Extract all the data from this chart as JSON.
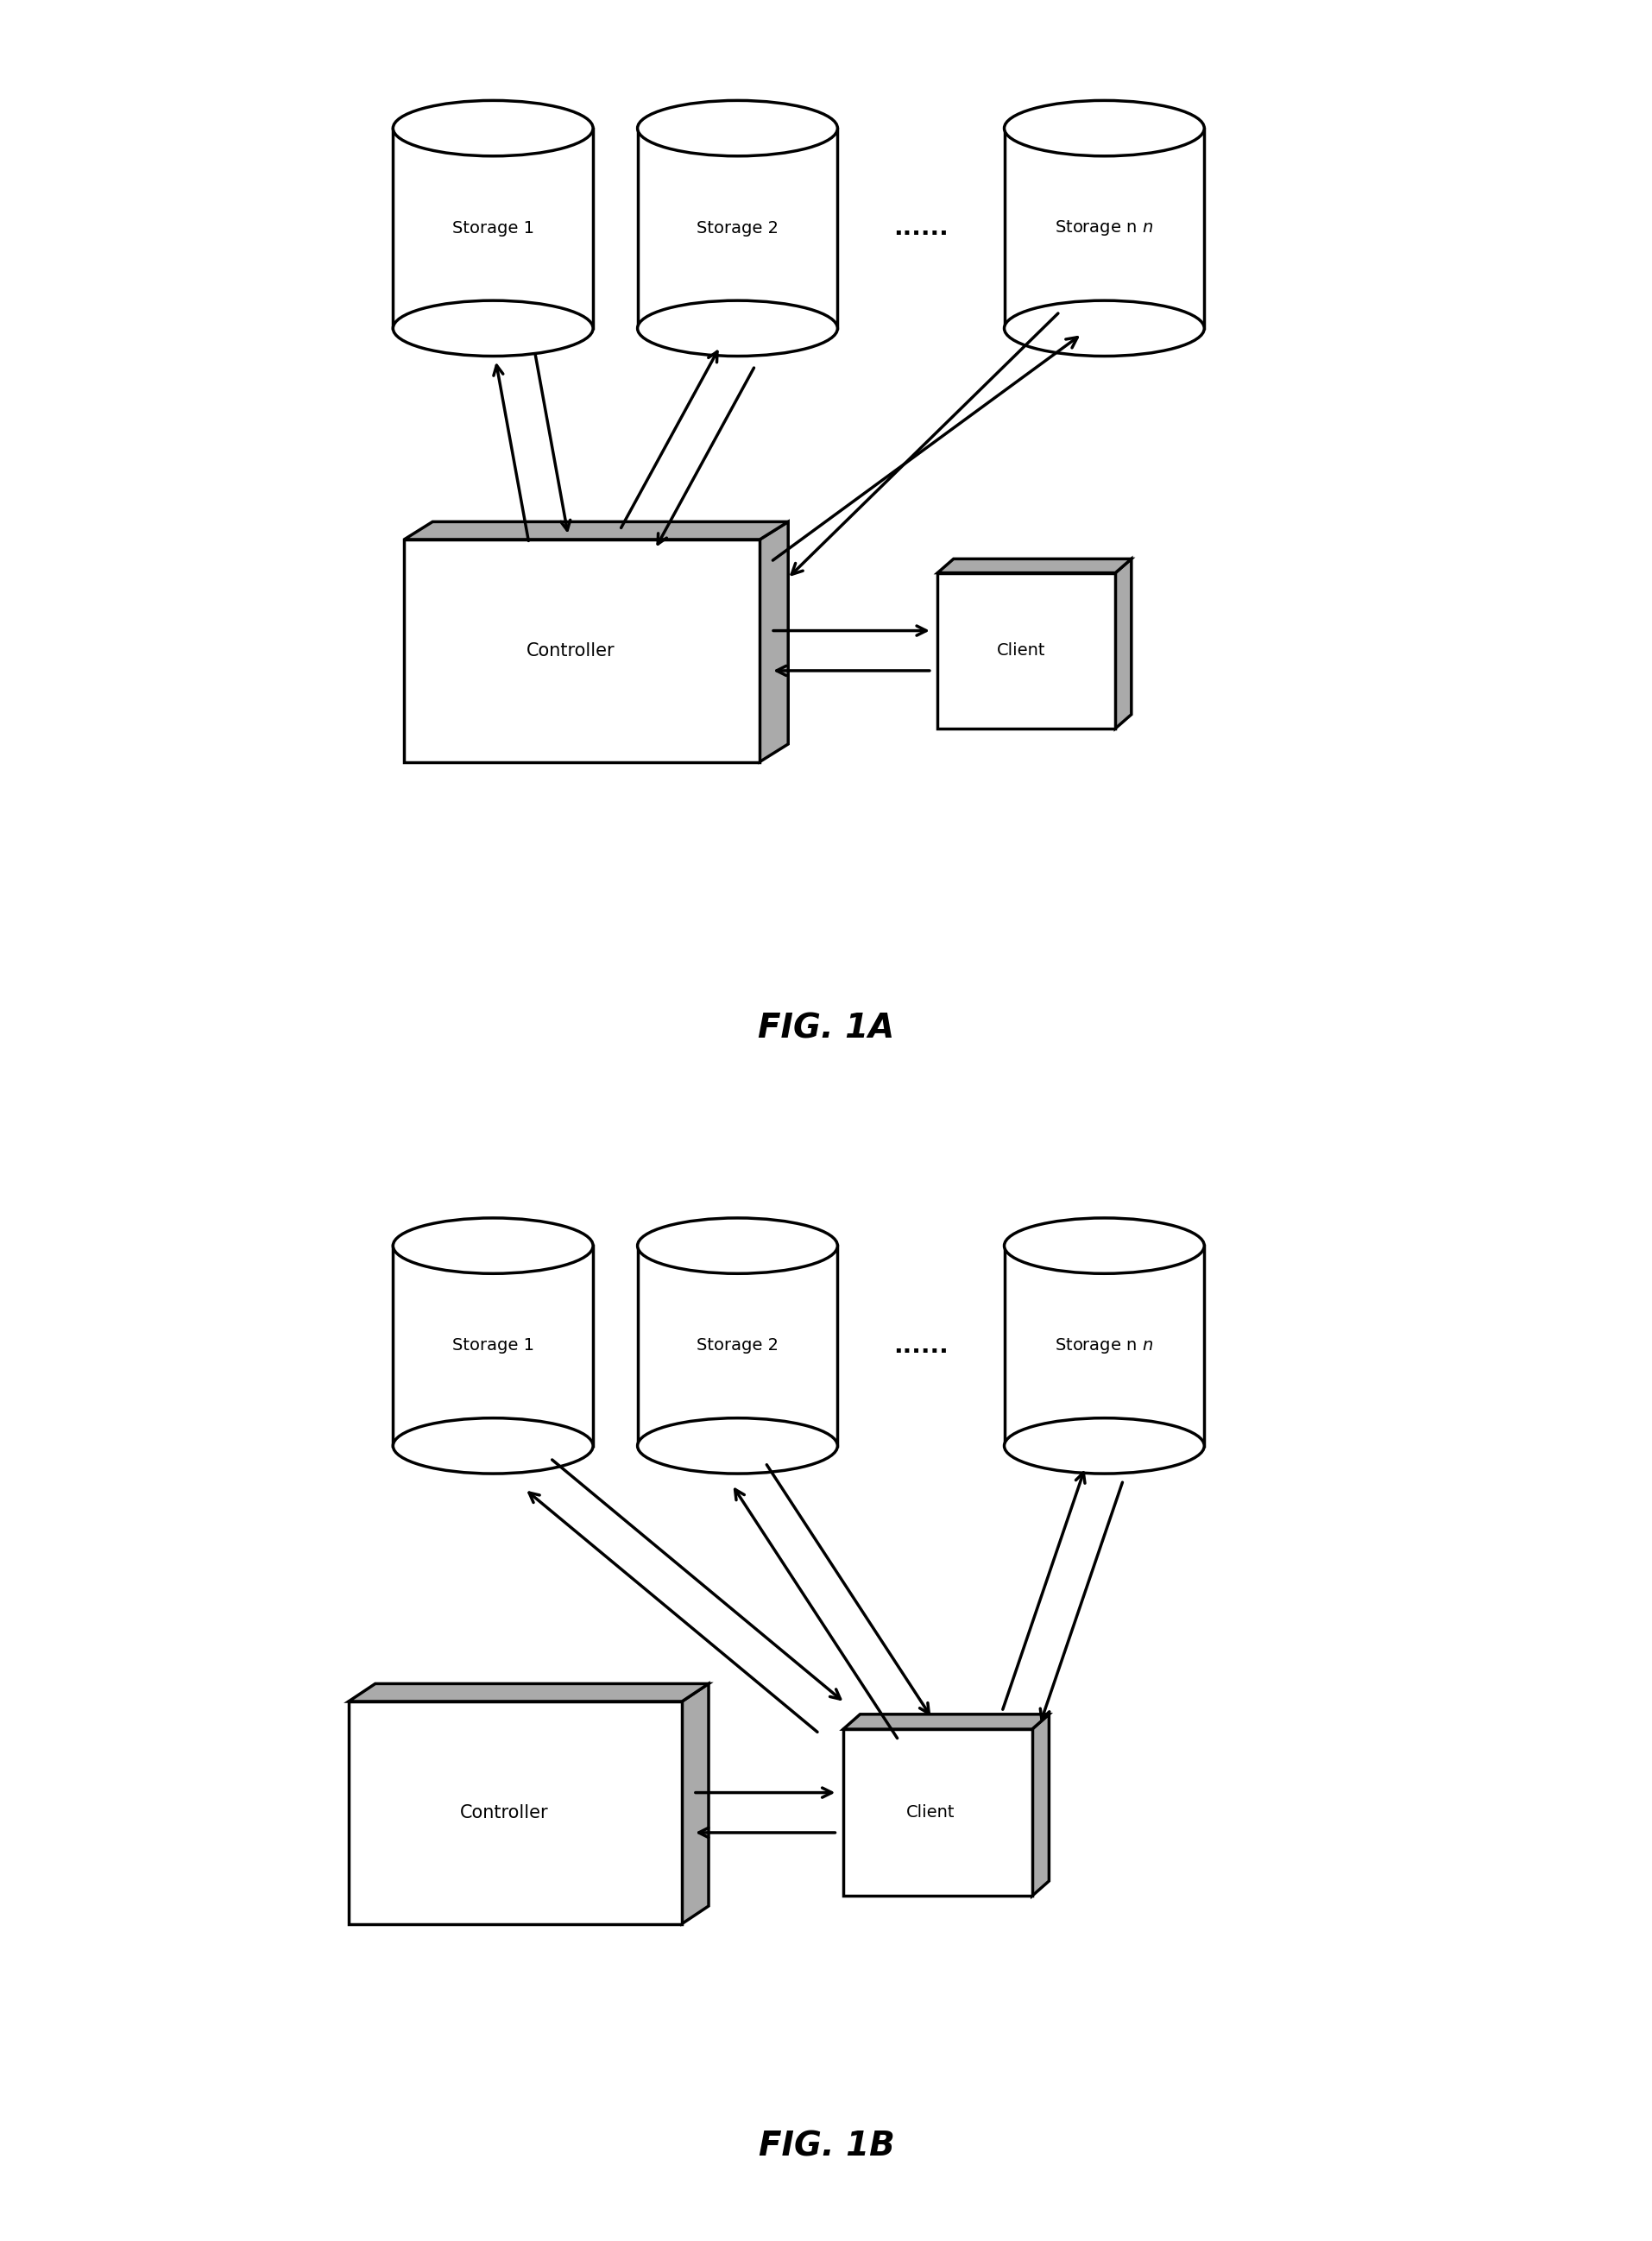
{
  "fig_width": 19.15,
  "fig_height": 25.96,
  "bg_color": "#ffffff",
  "line_color": "#000000",
  "fill_color": "#ffffff",
  "shadow_color": "#aaaaaa",
  "fig1a_title": "FIG. 1A",
  "fig1b_title": "FIG. 1B",
  "storage_labels": [
    "Storage 1",
    "Storage 2",
    "Storage n"
  ],
  "dots_label": "......",
  "controller_label": "Controller",
  "client_label": "Client"
}
